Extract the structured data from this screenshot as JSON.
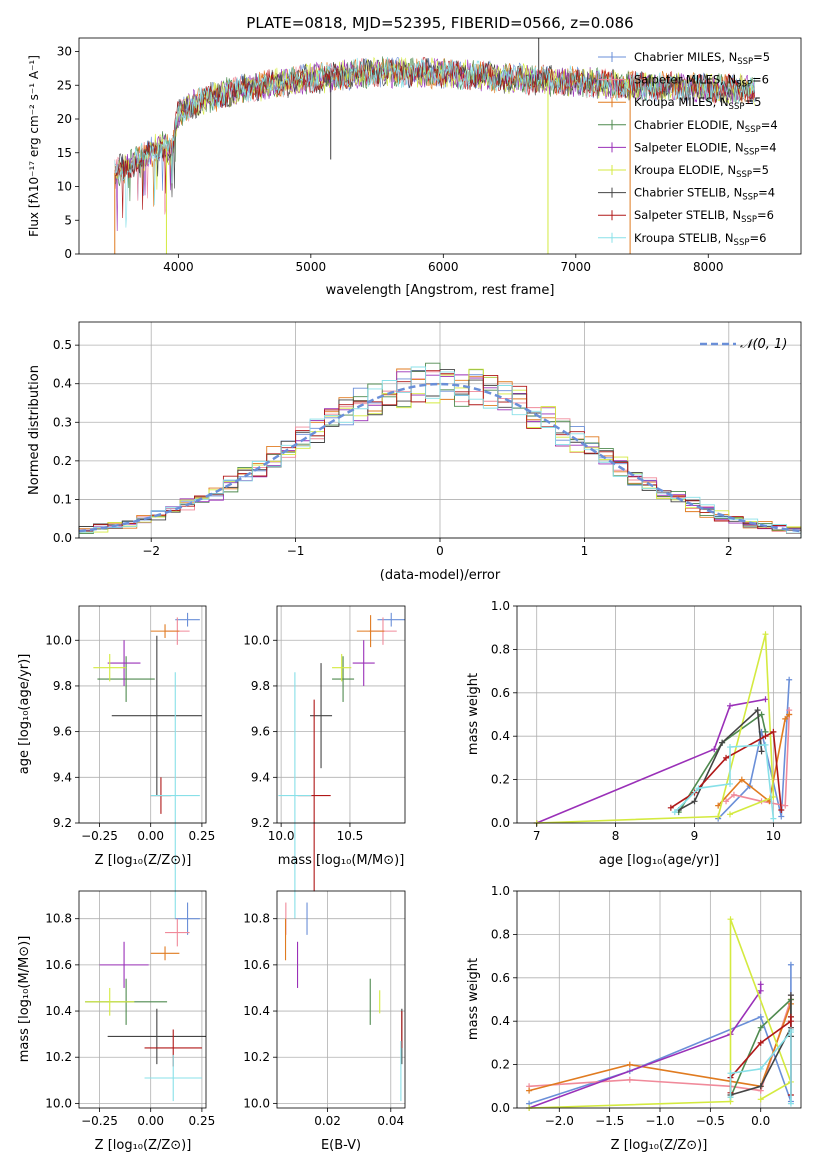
{
  "colors": {
    "Chabrier MILES": "#6a8fd8",
    "Salpeter MILES": "#f08a9a",
    "Kroupa MILES": "#e07b20",
    "Chabrier ELODIE": "#4f8a4f",
    "Salpeter ELODIE": "#9a30b8",
    "Kroupa ELODIE": "#d4ea40",
    "Chabrier STELIB": "#444444",
    "Salpeter STELIB": "#b01818",
    "Kroupa STELIB": "#88e0e8"
  },
  "chart_data": [
    {
      "id": "spectrum",
      "type": "line",
      "title": "PLATE=0818, MJD=52395, FIBERID=0566, z=0.086",
      "xlabel": "wavelength [Angstrom, rest frame]",
      "ylabel": "Flux [fλ10⁻¹⁷ erg cm⁻² s⁻¹ A⁻¹]",
      "xlim": [
        3250,
        8700
      ],
      "ylim": [
        0,
        32
      ],
      "xticks": [
        "4000",
        "5000",
        "6000",
        "7000",
        "8000"
      ],
      "yticks": [
        "0",
        "5",
        "10",
        "15",
        "20",
        "25",
        "30"
      ],
      "grid": false,
      "legend_position": "top-right",
      "legend": [
        {
          "label": "Chabrier MILES, N",
          "sub": "SSP",
          "suffix": "=5",
          "color_key": "Chabrier MILES"
        },
        {
          "label": "Salpeter MILES, N",
          "sub": "SSP",
          "suffix": "=6",
          "color_key": "Salpeter MILES"
        },
        {
          "label": "Kroupa MILES, N",
          "sub": "SSP",
          "suffix": "=5",
          "color_key": "Kroupa MILES"
        },
        {
          "label": "Chabrier ELODIE, N",
          "sub": "SSP",
          "suffix": "=4",
          "color_key": "Chabrier ELODIE"
        },
        {
          "label": "Salpeter ELODIE, N",
          "sub": "SSP",
          "suffix": "=4",
          "color_key": "Salpeter ELODIE"
        },
        {
          "label": "Kroupa ELODIE, N",
          "sub": "SSP",
          "suffix": "=5",
          "color_key": "Kroupa ELODIE"
        },
        {
          "label": "Chabrier STELIB, N",
          "sub": "SSP",
          "suffix": "=4",
          "color_key": "Chabrier STELIB"
        },
        {
          "label": "Salpeter STELIB, N",
          "sub": "SSP",
          "suffix": "=6",
          "color_key": "Salpeter STELIB"
        },
        {
          "label": "Kroupa STELIB, N",
          "sub": "SSP",
          "suffix": "=6",
          "color_key": "Kroupa STELIB"
        }
      ],
      "continuum": [
        [
          3520,
          12
        ],
        [
          3700,
          14
        ],
        [
          3880,
          16
        ],
        [
          3950,
          15
        ],
        [
          4000,
          21
        ],
        [
          4200,
          23
        ],
        [
          4500,
          24.5
        ],
        [
          5000,
          26
        ],
        [
          5500,
          27
        ],
        [
          6000,
          26.8
        ],
        [
          6500,
          26
        ],
        [
          7000,
          25.5
        ],
        [
          7400,
          25
        ],
        [
          8000,
          24.5
        ],
        [
          8350,
          24.3
        ]
      ],
      "spikes": [
        [
          3520,
          0,
          "Kroupa MILES"
        ],
        [
          3910,
          0,
          "Kroupa ELODIE"
        ],
        [
          6790,
          0,
          "Kroupa ELODIE"
        ],
        [
          7410,
          0,
          "Kroupa MILES"
        ],
        [
          5150,
          14,
          "Chabrier STELIB"
        ],
        [
          6720,
          34,
          "Chabrier STELIB"
        ]
      ]
    },
    {
      "id": "residuals",
      "type": "histogram",
      "xlabel": "(data-model)/error",
      "ylabel": "Normed distribution",
      "xlim": [
        -2.5,
        2.5
      ],
      "ylim": [
        0,
        0.56
      ],
      "xticks": [
        "−2",
        "−1",
        "0",
        "1",
        "2"
      ],
      "yticks": [
        "0.0",
        "0.1",
        "0.2",
        "0.3",
        "0.4",
        "0.5"
      ],
      "grid": true,
      "legend_position": "top-right",
      "reference_label": "𝒩(0, 1)",
      "bin_width": 0.1
    },
    {
      "id": "age-vs-Z",
      "type": "scatter",
      "xlabel": "Z [log₁₀(Z/Z⊙)]",
      "ylabel": "age  [log₁₀(age/yr)]",
      "xlim": [
        -0.35,
        0.27
      ],
      "ylim": [
        9.2,
        10.15
      ],
      "xticks": [
        "−0.25",
        "0.00",
        "0.25"
      ],
      "yticks": [
        "9.2",
        "9.4",
        "9.6",
        "9.8",
        "10.0"
      ],
      "points": [
        {
          "key": "Chabrier MILES",
          "x": 0.18,
          "y": 10.09,
          "xerr": 0.06,
          "yerr": 0.03
        },
        {
          "key": "Salpeter MILES",
          "x": 0.13,
          "y": 10.04,
          "xerr": 0.06,
          "yerr": 0.06
        },
        {
          "key": "Kroupa MILES",
          "x": 0.07,
          "y": 10.04,
          "xerr": 0.07,
          "yerr": 0.03
        },
        {
          "key": "Chabrier ELODIE",
          "x": -0.12,
          "y": 9.83,
          "xerr": 0.14,
          "yerr": 0.1
        },
        {
          "key": "Salpeter ELODIE",
          "x": -0.13,
          "y": 9.9,
          "xerr": 0.08,
          "yerr": 0.1
        },
        {
          "key": "Kroupa ELODIE",
          "x": -0.2,
          "y": 9.88,
          "xerr": 0.08,
          "yerr": 0.06
        },
        {
          "key": "Chabrier STELIB",
          "x": 0.03,
          "y": 9.67,
          "xerr": 0.22,
          "yerr": 0.35
        },
        {
          "key": "Salpeter STELIB",
          "x": 0.05,
          "y": 9.32,
          "xerr": 0.05,
          "yerr": 0.08
        },
        {
          "key": "Kroupa STELIB",
          "x": 0.12,
          "y": 9.32,
          "xerr": 0.12,
          "yerr": 0.54
        }
      ]
    },
    {
      "id": "age-vs-mass",
      "type": "scatter",
      "xlabel": "mass [log₁₀(M/M⊙)]",
      "ylabel": "",
      "xlim": [
        9.97,
        10.9
      ],
      "ylim": [
        9.2,
        10.15
      ],
      "xticks": [
        "10.0",
        "10.5"
      ],
      "yticks": [
        "9.2",
        "9.4",
        "9.6",
        "9.8",
        "10.0"
      ],
      "points": [
        {
          "key": "Chabrier MILES",
          "x": 10.8,
          "y": 10.09,
          "xerr": 0.1,
          "yerr": 0.03
        },
        {
          "key": "Salpeter MILES",
          "x": 10.74,
          "y": 10.04,
          "xerr": 0.1,
          "yerr": 0.06
        },
        {
          "key": "Kroupa MILES",
          "x": 10.65,
          "y": 10.04,
          "xerr": 0.1,
          "yerr": 0.07
        },
        {
          "key": "Chabrier ELODIE",
          "x": 10.45,
          "y": 9.83,
          "xerr": 0.08,
          "yerr": 0.1
        },
        {
          "key": "Salpeter ELODIE",
          "x": 10.6,
          "y": 9.9,
          "xerr": 0.08,
          "yerr": 0.1
        },
        {
          "key": "Kroupa ELODIE",
          "x": 10.44,
          "y": 9.88,
          "xerr": 0.07,
          "yerr": 0.06
        },
        {
          "key": "Chabrier STELIB",
          "x": 10.29,
          "y": 9.67,
          "xerr": 0.08,
          "yerr": 0.23
        },
        {
          "key": "Salpeter STELIB",
          "x": 10.24,
          "y": 9.32,
          "xerr": 0.12,
          "yerr": 0.42
        },
        {
          "key": "Kroupa STELIB",
          "x": 10.1,
          "y": 9.32,
          "xerr": 0.12,
          "yerr": 0.54
        }
      ]
    },
    {
      "id": "weight-vs-age",
      "type": "line",
      "xlabel": "age  [log₁₀(age/yr)]",
      "ylabel": "mass weight",
      "xlim": [
        6.75,
        10.35
      ],
      "ylim": [
        0,
        1.0
      ],
      "xticks": [
        "7",
        "8",
        "9",
        "10"
      ],
      "yticks": [
        "0.0",
        "0.2",
        "0.4",
        "0.6",
        "0.8",
        "1.0"
      ],
      "grid": true
    },
    {
      "id": "mass-vs-Z",
      "type": "scatter",
      "xlabel": "Z [log₁₀(Z/Z⊙)]",
      "ylabel": "mass [log₁₀(M/M⊙)]",
      "xlim": [
        -0.35,
        0.27
      ],
      "ylim": [
        9.98,
        10.92
      ],
      "xticks": [
        "−0.25",
        "0.00",
        "0.25"
      ],
      "yticks": [
        "10.0",
        "10.2",
        "10.4",
        "10.6",
        "10.8"
      ],
      "points": [
        {
          "key": "Chabrier MILES",
          "x": 0.18,
          "y": 10.8,
          "xerr": 0.06,
          "yerr": 0.07
        },
        {
          "key": "Salpeter MILES",
          "x": 0.13,
          "y": 10.74,
          "xerr": 0.06,
          "yerr": 0.06
        },
        {
          "key": "Kroupa MILES",
          "x": 0.07,
          "y": 10.65,
          "xerr": 0.07,
          "yerr": 0.03
        },
        {
          "key": "Chabrier ELODIE",
          "x": -0.12,
          "y": 10.44,
          "xerr": 0.2,
          "yerr": 0.1
        },
        {
          "key": "Salpeter ELODIE",
          "x": -0.13,
          "y": 10.6,
          "xerr": 0.12,
          "yerr": 0.1
        },
        {
          "key": "Kroupa ELODIE",
          "x": -0.2,
          "y": 10.44,
          "xerr": 0.12,
          "yerr": 0.06
        },
        {
          "key": "Chabrier STELIB",
          "x": 0.03,
          "y": 10.29,
          "xerr": 0.24,
          "yerr": 0.12
        },
        {
          "key": "Salpeter STELIB",
          "x": 0.11,
          "y": 10.24,
          "xerr": 0.14,
          "yerr": 0.08
        },
        {
          "key": "Kroupa STELIB",
          "x": 0.11,
          "y": 10.11,
          "xerr": 0.14,
          "yerr": 0.1
        }
      ]
    },
    {
      "id": "mass-vs-ebv",
      "type": "scatter",
      "xlabel": "E(B-V)",
      "ylabel": "",
      "xlim": [
        0.004,
        0.0445
      ],
      "ylim": [
        9.98,
        10.92
      ],
      "xticks": [
        "0.02",
        "0.04"
      ],
      "yticks": [
        "10.0",
        "10.2",
        "10.4",
        "10.6",
        "10.8"
      ],
      "points": [
        {
          "key": "Chabrier MILES",
          "x": 0.0135,
          "y": 10.8,
          "xerr": 0,
          "yerr": 0.07
        },
        {
          "key": "Salpeter MILES",
          "x": 0.0068,
          "y": 10.8,
          "xerr": 0,
          "yerr": 0.07
        },
        {
          "key": "Kroupa MILES",
          "x": 0.0067,
          "y": 10.71,
          "xerr": 0,
          "yerr": 0.09
        },
        {
          "key": "Chabrier ELODIE",
          "x": 0.0335,
          "y": 10.44,
          "xerr": 0,
          "yerr": 0.1
        },
        {
          "key": "Salpeter ELODIE",
          "x": 0.0105,
          "y": 10.6,
          "xerr": 0,
          "yerr": 0.1
        },
        {
          "key": "Kroupa ELODIE",
          "x": 0.0365,
          "y": 10.44,
          "xerr": 0,
          "yerr": 0.05
        },
        {
          "key": "Chabrier STELIB",
          "x": 0.0435,
          "y": 10.29,
          "xerr": 0,
          "yerr": 0.12
        },
        {
          "key": "Salpeter STELIB",
          "x": 0.0435,
          "y": 10.32,
          "xerr": 0,
          "yerr": 0.08
        },
        {
          "key": "Kroupa STELIB",
          "x": 0.0432,
          "y": 10.14,
          "xerr": 0,
          "yerr": 0.13
        }
      ]
    },
    {
      "id": "weight-vs-Z",
      "type": "line",
      "xlabel": "Z [log₁₀(Z/Z⊙)]",
      "ylabel": "mass weight",
      "xlim": [
        -2.42,
        0.4
      ],
      "ylim": [
        0,
        1.0
      ],
      "xticks": [
        "−2.0",
        "−1.5",
        "−1.0",
        "−0.5",
        "0.0"
      ],
      "yticks": [
        "0.0",
        "0.2",
        "0.4",
        "0.6",
        "0.8",
        "1.0"
      ],
      "grid": true
    }
  ],
  "series_weights": {
    "Chabrier MILES": {
      "age": [
        9.3,
        9.7,
        9.85,
        10.1,
        10.2
      ],
      "Z": [
        -2.3,
        -1.3,
        0.0,
        0.3,
        0.3
      ],
      "w": [
        0.02,
        0.17,
        0.42,
        0.03,
        0.66
      ]
    },
    "Salpeter MILES": {
      "age": [
        9.4,
        9.5,
        9.85,
        10.15,
        10.2,
        10.2
      ],
      "Z": [
        -2.3,
        -1.3,
        -0.3,
        0.0,
        0.3,
        0.3
      ],
      "w": [
        0.1,
        0.13,
        0.1,
        0.08,
        0.5,
        0.52
      ]
    },
    "Kroupa MILES": {
      "age": [
        9.3,
        9.6,
        9.95,
        10.15,
        10.2
      ],
      "Z": [
        -2.3,
        -1.3,
        0.0,
        0.3,
        0.3
      ],
      "w": [
        0.08,
        0.2,
        0.1,
        0.48,
        0.5
      ]
    },
    "Chabrier ELODIE": {
      "age": [
        8.8,
        9.35,
        9.85,
        9.9
      ],
      "Z": [
        -0.3,
        0.0,
        0.3,
        0.3
      ],
      "w": [
        0.05,
        0.37,
        0.5,
        0.42
      ]
    },
    "Salpeter ELODIE": {
      "age": [
        7.0,
        9.25,
        9.45,
        9.9
      ],
      "Z": [
        -2.3,
        -0.3,
        0.0,
        0.0
      ],
      "w": [
        0.0,
        0.34,
        0.54,
        0.57
      ]
    },
    "Kroupa ELODIE": {
      "age": [
        7.0,
        9.3,
        9.9,
        10.0,
        9.45
      ],
      "Z": [
        -2.3,
        -0.3,
        -0.3,
        0.3,
        0.0
      ],
      "w": [
        0.0,
        0.03,
        0.87,
        0.12,
        0.04
      ]
    },
    "Chabrier STELIB": {
      "age": [
        8.8,
        9.0,
        9.35,
        9.8,
        9.85
      ],
      "Z": [
        -0.3,
        0.0,
        0.3,
        0.3,
        0.3
      ],
      "w": [
        0.06,
        0.1,
        0.37,
        0.52,
        0.33
      ]
    },
    "Salpeter STELIB": {
      "age": [
        8.7,
        9.0,
        9.4,
        9.9,
        10.0,
        10.1
      ],
      "Z": [
        -0.3,
        -0.3,
        0.0,
        0.3,
        0.3,
        0.3
      ],
      "w": [
        0.07,
        0.14,
        0.3,
        0.4,
        0.42,
        0.06
      ]
    },
    "Kroupa STELIB": {
      "age": [
        8.75,
        9.05,
        9.45,
        9.45,
        9.9,
        10.0
      ],
      "Z": [
        -0.3,
        -0.3,
        0.0,
        0.3,
        0.3,
        0.3
      ],
      "w": [
        0.05,
        0.16,
        0.18,
        0.35,
        0.36,
        0.02
      ]
    }
  }
}
